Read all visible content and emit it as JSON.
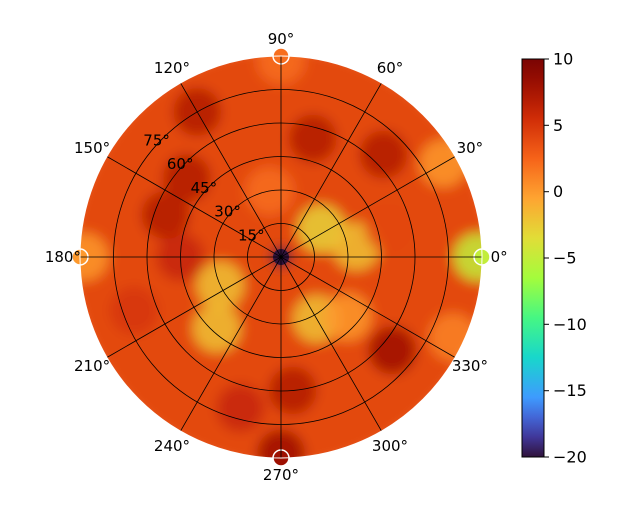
{
  "chart_data": {
    "type": "heatmap",
    "projection": "polar",
    "grid": true,
    "theta_ticks": [
      "0°",
      "30°",
      "60°",
      "90°",
      "120°",
      "150°",
      "180°",
      "210°",
      "240°",
      "270°",
      "300°",
      "330°"
    ],
    "theta_tick_values": [
      0,
      30,
      60,
      90,
      120,
      150,
      180,
      210,
      240,
      270,
      300,
      330
    ],
    "radial_ticks": [
      "15°",
      "30°",
      "45°",
      "60°",
      "75°"
    ],
    "radial_tick_values": [
      15,
      30,
      45,
      60,
      75
    ],
    "radial_range": [
      0,
      90
    ],
    "colorbar": {
      "position": "right",
      "range": [
        -20,
        10
      ],
      "ticks": [
        "10",
        "5",
        "0",
        "−5",
        "−10",
        "−15",
        "−20"
      ],
      "tick_values": [
        10,
        5,
        0,
        -5,
        -10,
        -15,
        -20
      ],
      "colormap": "turbo"
    },
    "blobs": [
      {
        "theta": 0,
        "r": 0,
        "value": -20
      },
      {
        "theta": 35,
        "r": 22,
        "value": -3
      },
      {
        "theta": 8,
        "r": 34,
        "value": -2
      },
      {
        "theta": 205,
        "r": 30,
        "value": -2
      },
      {
        "theta": 228,
        "r": 43,
        "value": -2
      },
      {
        "theta": 300,
        "r": 32,
        "value": -2
      },
      {
        "theta": 318,
        "r": 40,
        "value": 0
      },
      {
        "theta": 100,
        "r": 30,
        "value": 2
      },
      {
        "theta": 140,
        "r": 55,
        "value": 7
      },
      {
        "theta": 120,
        "r": 75,
        "value": 7
      },
      {
        "theta": 160,
        "r": 55,
        "value": 7
      },
      {
        "theta": 45,
        "r": 65,
        "value": 7
      },
      {
        "theta": 75,
        "r": 55,
        "value": 7
      },
      {
        "theta": 320,
        "r": 65,
        "value": 8
      },
      {
        "theta": 275,
        "r": 60,
        "value": 7
      },
      {
        "theta": 255,
        "r": 70,
        "value": 6
      },
      {
        "theta": 200,
        "r": 70,
        "value": 5
      },
      {
        "theta": 180,
        "r": 45,
        "value": 6
      },
      {
        "theta": 15,
        "r": 50,
        "value": 4
      },
      {
        "theta": 30,
        "r": 84,
        "value": 0
      },
      {
        "theta": 0,
        "r": 88,
        "value": -5
      },
      {
        "theta": 180,
        "r": 88,
        "value": 0
      },
      {
        "theta": 90,
        "r": 88,
        "value": 2
      },
      {
        "theta": 270,
        "r": 88,
        "value": 8
      },
      {
        "theta": 335,
        "r": 85,
        "value": 1
      }
    ],
    "background_value": 4
  }
}
